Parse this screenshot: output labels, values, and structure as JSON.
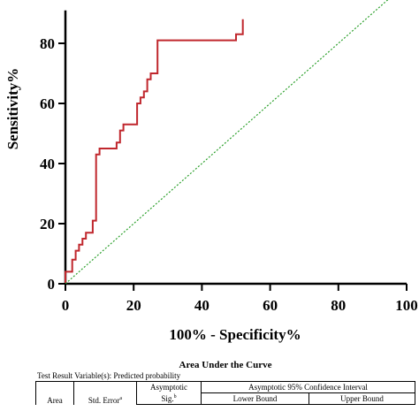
{
  "chart_data": {
    "type": "line",
    "xlabel": "100% - Specificity%",
    "ylabel": "Sensitivity%",
    "xlim": [
      0,
      100
    ],
    "ylim": [
      0,
      88
    ],
    "x_ticks": [
      0,
      20,
      40,
      60,
      80,
      100
    ],
    "y_ticks": [
      0,
      20,
      40,
      60,
      80
    ],
    "x_tick_labels": [
      "0",
      "20",
      "40",
      "60",
      "80",
      "100"
    ],
    "y_tick_labels": [
      "0",
      "20",
      "40",
      "60",
      "80"
    ],
    "grid": false,
    "series": [
      {
        "color": "#c0272d",
        "style": "solid",
        "x": [
          0,
          0,
          2,
          2,
          3,
          3,
          4,
          4,
          5,
          5,
          6,
          6,
          8,
          8,
          9,
          9,
          10,
          10,
          11,
          11,
          15,
          15,
          16,
          16,
          17,
          17,
          21,
          21,
          22,
          22,
          23,
          23,
          24,
          24,
          25,
          25,
          27,
          27,
          50,
          50,
          52,
          52
        ],
        "y": [
          0,
          4,
          4,
          8,
          8,
          11,
          11,
          13,
          13,
          15,
          15,
          17,
          17,
          21,
          21,
          43,
          43,
          45,
          45,
          45,
          45,
          47,
          47,
          51,
          51,
          53,
          53,
          60,
          60,
          62,
          62,
          64,
          64,
          68,
          68,
          70,
          70,
          81,
          81,
          83,
          83,
          88
        ]
      },
      {
        "color": "#2ca02c",
        "style": "dotted",
        "x": [
          0,
          100
        ],
        "y": [
          0,
          100
        ]
      }
    ]
  },
  "table": {
    "title": "Area Under the Curve",
    "variable_note": "Test Result Variable(s): Predicted probability",
    "headers": {
      "area": "Area",
      "std_error": "Std. Error",
      "std_error_sup": "a",
      "asymptotic": "Asymptotic",
      "sig": "Sig.",
      "sig_sup": "b",
      "ci": "Asymptotic 95% Confidence Interval",
      "lower": "Lower Bound",
      "upper": "Upper Bound"
    }
  }
}
